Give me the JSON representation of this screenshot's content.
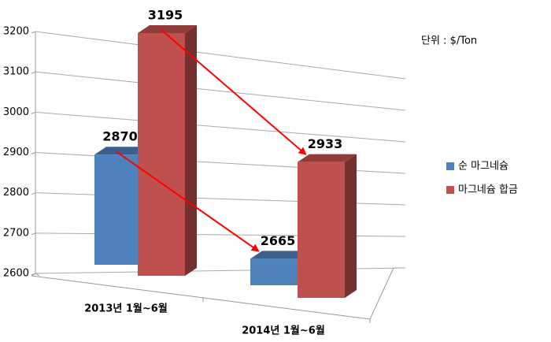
{
  "chart_data": {
    "type": "bar3d",
    "annotation": "단위 : $/Ton",
    "categories": [
      "2013년 1월~6월",
      "2014년 1월~6월"
    ],
    "series": [
      {
        "name": "순 마그네슘",
        "color": "#4f81bd",
        "values": [
          2870,
          2665
        ]
      },
      {
        "name": "마그네슘 합금",
        "color": "#c0504d",
        "values": [
          3195,
          2933
        ]
      }
    ],
    "ylim": [
      2600,
      3200
    ],
    "yticks": [
      2600,
      2700,
      2800,
      2900,
      3000,
      3100,
      3200
    ],
    "grid": true,
    "legend": "right"
  }
}
